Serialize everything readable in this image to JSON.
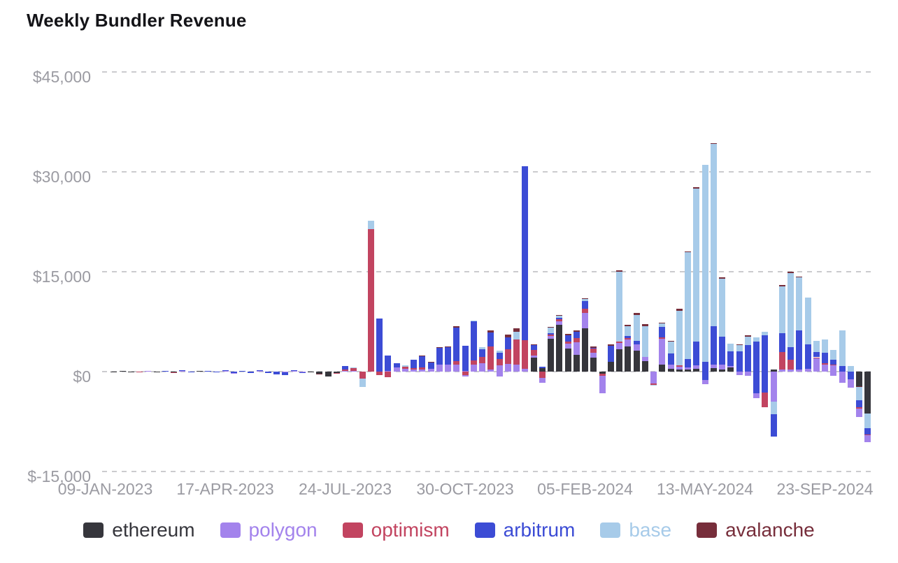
{
  "title": "Weekly Bundler Revenue",
  "chart_data": {
    "type": "bar",
    "stacked": true,
    "title": "Weekly Bundler Revenue",
    "xlabel": "",
    "ylabel": "",
    "ylim": [
      -15000,
      45000
    ],
    "grid": "dashed-horizontal",
    "legend_position": "bottom",
    "x_unit": "week",
    "y_ticks": [
      {
        "value": 45000,
        "label": "$45,000"
      },
      {
        "value": 30000,
        "label": "$30,000"
      },
      {
        "value": 15000,
        "label": "$15,000"
      },
      {
        "value": 0,
        "label": "$0"
      },
      {
        "value": -15000,
        "label": "$-15,000"
      }
    ],
    "x_labels": [
      "09-JAN-2023",
      "17-APR-2023",
      "24-JUL-2023",
      "30-OCT-2023",
      "05-FEB-2024",
      "13-MAY-2024",
      "23-SEP-2024"
    ],
    "legend": [
      {
        "name": "ethereum",
        "color": "#36363c"
      },
      {
        "name": "polygon",
        "color": "#a383ec"
      },
      {
        "name": "optimism",
        "color": "#c24460"
      },
      {
        "name": "arbitrum",
        "color": "#3c4cd5"
      },
      {
        "name": "base",
        "color": "#a7cbe9"
      },
      {
        "name": "avalanche",
        "color": "#772e3b"
      }
    ],
    "bars": [
      [],
      [
        [
          "ethereum",
          -40
        ]
      ],
      [
        [
          "ethereum",
          35
        ]
      ],
      [
        [
          "ethereum",
          -50
        ]
      ],
      [
        [
          "optimism",
          -40
        ]
      ],
      [
        [
          "polygon",
          35
        ]
      ],
      [
        [
          "ethereum",
          -60
        ]
      ],
      [
        [
          "arbitrum",
          55
        ]
      ],
      [
        [
          "ethereum",
          -40
        ],
        [
          "optimism",
          -30
        ]
      ],
      [
        [
          "polygon",
          40
        ],
        [
          "arbitrum",
          45
        ]
      ],
      [
        [
          "arbitrum",
          -65
        ]
      ],
      [
        [
          "ethereum",
          50
        ]
      ],
      [
        [
          "arbitrum",
          120
        ]
      ],
      [
        [
          "arbitrum",
          -140
        ]
      ],
      [
        [
          "polygon",
          60
        ],
        [
          "arbitrum",
          95
        ]
      ],
      [
        [
          "arbitrum",
          -165
        ],
        [
          "polygon",
          -50
        ]
      ],
      [
        [
          "arbitrum",
          130
        ]
      ],
      [
        [
          "arbitrum",
          -190
        ]
      ],
      [
        [
          "polygon",
          70
        ],
        [
          "arbitrum",
          160
        ]
      ],
      [
        [
          "arbitrum",
          -260
        ]
      ],
      [
        [
          "arbitrum",
          -380
        ]
      ],
      [
        [
          "polygon",
          -90
        ],
        [
          "arbitrum",
          -420
        ]
      ],
      [
        [
          "polygon",
          110
        ],
        [
          "arbitrum",
          95
        ]
      ],
      [
        [
          "polygon",
          -70
        ],
        [
          "arbitrum",
          -60
        ]
      ],
      [
        [
          "ethereum",
          -90
        ]
      ],
      [
        [
          "ethereum",
          -310
        ],
        [
          "avalanche",
          -70
        ]
      ],
      [
        [
          "ethereum",
          -700
        ]
      ],
      [
        [
          "ethereum",
          -210
        ],
        [
          "optimism",
          -80
        ]
      ],
      [
        [
          "polygon",
          150
        ],
        [
          "optimism",
          180
        ],
        [
          "arbitrum",
          480
        ]
      ],
      [
        [
          "polygon",
          100
        ],
        [
          "optimism",
          430
        ],
        [
          "base",
          120
        ]
      ],
      [
        [
          "optimism",
          -1000
        ],
        [
          "base",
          -1350
        ]
      ],
      [
        [
          "optimism",
          21400
        ],
        [
          "base",
          1250
        ]
      ],
      [
        [
          "arbitrum",
          8000
        ],
        [
          "optimism",
          -500
        ]
      ],
      [
        [
          "polygon",
          150
        ],
        [
          "arbitrum",
          2300
        ],
        [
          "optimism",
          -800
        ]
      ],
      [
        [
          "polygon",
          600
        ],
        [
          "arbitrum",
          650
        ]
      ],
      [
        [
          "polygon",
          400
        ],
        [
          "optimism",
          300
        ],
        [
          "base",
          200
        ]
      ],
      [
        [
          "polygon",
          300
        ],
        [
          "optimism",
          200
        ],
        [
          "arbitrum",
          1300
        ]
      ],
      [
        [
          "polygon",
          300
        ],
        [
          "optimism",
          300
        ],
        [
          "arbitrum",
          1700
        ],
        [
          "avalanche",
          100
        ]
      ],
      [
        [
          "polygon",
          400
        ],
        [
          "arbitrum",
          1000
        ],
        [
          "avalanche",
          100
        ]
      ],
      [
        [
          "polygon",
          1050
        ],
        [
          "arbitrum",
          2550
        ],
        [
          "avalanche",
          100
        ]
      ],
      [
        [
          "polygon",
          1100
        ],
        [
          "arbitrum",
          2600
        ],
        [
          "avalanche",
          100
        ]
      ],
      [
        [
          "polygon",
          1100
        ],
        [
          "optimism",
          500
        ],
        [
          "arbitrum",
          5000
        ],
        [
          "avalanche",
          200
        ]
      ],
      [
        [
          "polygon",
          150
        ],
        [
          "arbitrum",
          3750
        ],
        [
          "optimism",
          -500
        ],
        [
          "polygon",
          -200
        ]
      ],
      [
        [
          "polygon",
          1000
        ],
        [
          "optimism",
          700
        ],
        [
          "arbitrum",
          5900
        ],
        [
          "base",
          100
        ]
      ],
      [
        [
          "polygon",
          1300
        ],
        [
          "optimism",
          900
        ],
        [
          "arbitrum",
          1200
        ],
        [
          "base",
          300
        ]
      ],
      [
        [
          "polygon",
          300
        ],
        [
          "optimism",
          3500
        ],
        [
          "arbitrum",
          2100
        ],
        [
          "avalanche",
          300
        ]
      ],
      [
        [
          "polygon",
          900
        ],
        [
          "optimism",
          1000
        ],
        [
          "arbitrum",
          900
        ],
        [
          "base",
          300
        ],
        [
          "polygon",
          -700
        ]
      ],
      [
        [
          "polygon",
          1200
        ],
        [
          "optimism",
          2200
        ],
        [
          "arbitrum",
          1700
        ],
        [
          "avalanche",
          500
        ]
      ],
      [
        [
          "polygon",
          1100
        ],
        [
          "optimism",
          3700
        ],
        [
          "base",
          1200
        ],
        [
          "avalanche",
          500
        ]
      ],
      [
        [
          "polygon",
          400
        ],
        [
          "optimism",
          4300
        ],
        [
          "arbitrum",
          26100
        ]
      ],
      [
        [
          "ethereum",
          2100
        ],
        [
          "polygon",
          300
        ],
        [
          "optimism",
          800
        ],
        [
          "arbitrum",
          800
        ],
        [
          "avalanche",
          100
        ]
      ],
      [
        [
          "ethereum",
          550
        ],
        [
          "arbitrum",
          150
        ],
        [
          "optimism",
          -900
        ],
        [
          "polygon",
          -750
        ]
      ],
      [
        [
          "ethereum",
          4900
        ],
        [
          "polygon",
          400
        ],
        [
          "optimism",
          300
        ],
        [
          "arbitrum",
          200
        ],
        [
          "base",
          800
        ],
        [
          "avalanche",
          100
        ]
      ],
      [
        [
          "ethereum",
          7000
        ],
        [
          "polygon",
          600
        ],
        [
          "optimism",
          300
        ],
        [
          "arbitrum",
          200
        ],
        [
          "base",
          300
        ],
        [
          "avalanche",
          100
        ]
      ],
      [
        [
          "ethereum",
          3500
        ],
        [
          "polygon",
          700
        ],
        [
          "optimism",
          350
        ],
        [
          "arbitrum",
          900
        ],
        [
          "avalanche",
          250
        ]
      ],
      [
        [
          "ethereum",
          2500
        ],
        [
          "polygon",
          1900
        ],
        [
          "optimism",
          600
        ],
        [
          "arbitrum",
          950
        ],
        [
          "avalanche",
          250
        ]
      ],
      [
        [
          "ethereum",
          6500
        ],
        [
          "polygon",
          2300
        ],
        [
          "optimism",
          600
        ],
        [
          "arbitrum",
          1200
        ],
        [
          "base",
          300
        ],
        [
          "avalanche",
          100
        ]
      ],
      [
        [
          "ethereum",
          2100
        ],
        [
          "polygon",
          700
        ],
        [
          "optimism",
          700
        ],
        [
          "arbitrum",
          100
        ],
        [
          "avalanche",
          200
        ]
      ],
      [
        [
          "ethereum",
          -350
        ],
        [
          "optimism",
          -250
        ],
        [
          "polygon",
          -2600
        ]
      ],
      [
        [
          "ethereum",
          1500
        ],
        [
          "arbitrum",
          2400
        ],
        [
          "avalanche",
          200
        ]
      ],
      [
        [
          "ethereum",
          3350
        ],
        [
          "polygon",
          900
        ],
        [
          "optimism",
          300
        ],
        [
          "base",
          10400
        ],
        [
          "avalanche",
          300
        ]
      ],
      [
        [
          "ethereum",
          3800
        ],
        [
          "polygon",
          1000
        ],
        [
          "optimism",
          200
        ],
        [
          "arbitrum",
          300
        ],
        [
          "base",
          1500
        ],
        [
          "avalanche",
          200
        ]
      ],
      [
        [
          "ethereum",
          3100
        ],
        [
          "polygon",
          1000
        ],
        [
          "arbitrum",
          500
        ],
        [
          "base",
          3900
        ],
        [
          "avalanche",
          300
        ]
      ],
      [
        [
          "ethereum",
          1600
        ],
        [
          "polygon",
          600
        ],
        [
          "base",
          4600
        ],
        [
          "avalanche",
          300
        ]
      ],
      [
        [
          "polygon",
          -1800
        ],
        [
          "optimism",
          -200
        ],
        [
          "base",
          -150
        ]
      ],
      [
        [
          "ethereum",
          1000
        ],
        [
          "polygon",
          3900
        ],
        [
          "optimism",
          200
        ],
        [
          "arbitrum",
          1600
        ],
        [
          "base",
          500
        ],
        [
          "avalanche",
          100
        ]
      ],
      [
        [
          "ethereum",
          400
        ],
        [
          "polygon",
          700
        ],
        [
          "arbitrum",
          1600
        ],
        [
          "base",
          1850
        ],
        [
          "avalanche",
          100
        ]
      ],
      [
        [
          "ethereum",
          300
        ],
        [
          "polygon",
          400
        ],
        [
          "optimism",
          200
        ],
        [
          "base",
          8200
        ],
        [
          "avalanche",
          300
        ]
      ],
      [
        [
          "ethereum",
          300
        ],
        [
          "polygon",
          300
        ],
        [
          "arbitrum",
          1300
        ],
        [
          "base",
          16000
        ],
        [
          "avalanche",
          100
        ]
      ],
      [
        [
          "ethereum",
          400
        ],
        [
          "polygon",
          500
        ],
        [
          "arbitrum",
          3600
        ],
        [
          "base",
          23000
        ],
        [
          "avalanche",
          200
        ]
      ],
      [
        [
          "arbitrum",
          1500
        ],
        [
          "base",
          29500
        ],
        [
          "arbitrum",
          -1300
        ],
        [
          "polygon",
          -600
        ]
      ],
      [
        [
          "ethereum",
          550
        ],
        [
          "polygon",
          500
        ],
        [
          "arbitrum",
          5800
        ],
        [
          "base",
          27300
        ],
        [
          "avalanche",
          200
        ]
      ],
      [
        [
          "ethereum",
          300
        ],
        [
          "polygon",
          700
        ],
        [
          "arbitrum",
          4200
        ],
        [
          "base",
          8800
        ],
        [
          "avalanche",
          200
        ]
      ],
      [
        [
          "ethereum",
          600
        ],
        [
          "polygon",
          200
        ],
        [
          "arbitrum",
          2200
        ],
        [
          "base",
          1200
        ]
      ],
      [
        [
          "arbitrum",
          3000
        ],
        [
          "base",
          1000
        ],
        [
          "avalanche",
          100
        ],
        [
          "polygon",
          -500
        ]
      ],
      [
        [
          "arbitrum",
          4000
        ],
        [
          "base",
          1200
        ],
        [
          "avalanche",
          300
        ],
        [
          "polygon",
          -600
        ]
      ],
      [
        [
          "arbitrum",
          4500
        ],
        [
          "base",
          600
        ],
        [
          "arbitrum",
          -3300
        ],
        [
          "polygon",
          -700
        ]
      ],
      [
        [
          "arbitrum",
          5500
        ],
        [
          "base",
          500
        ],
        [
          "arbitrum",
          -3100
        ],
        [
          "optimism",
          -2200
        ]
      ],
      [
        [
          "ethereum",
          300
        ],
        [
          "polygon",
          -4500
        ],
        [
          "base",
          -1900
        ],
        [
          "arbitrum",
          -3400
        ]
      ],
      [
        [
          "polygon",
          300
        ],
        [
          "optimism",
          2600
        ],
        [
          "arbitrum",
          2900
        ],
        [
          "base",
          7000
        ],
        [
          "avalanche",
          200
        ]
      ],
      [
        [
          "polygon",
          300
        ],
        [
          "optimism",
          1500
        ],
        [
          "arbitrum",
          1900
        ],
        [
          "base",
          11100
        ],
        [
          "avalanche",
          200
        ]
      ],
      [
        [
          "polygon",
          300
        ],
        [
          "arbitrum",
          5900
        ],
        [
          "base",
          8000
        ],
        [
          "avalanche",
          100
        ]
      ],
      [
        [
          "polygon",
          400
        ],
        [
          "arbitrum",
          3700
        ],
        [
          "base",
          7000
        ]
      ],
      [
        [
          "polygon",
          2000
        ],
        [
          "optimism",
          150
        ],
        [
          "arbitrum",
          750
        ],
        [
          "base",
          1700
        ]
      ],
      [
        [
          "polygon",
          1100
        ],
        [
          "optimism",
          150
        ],
        [
          "arbitrum",
          1600
        ],
        [
          "base",
          1950
        ]
      ],
      [
        [
          "polygon",
          900
        ],
        [
          "optimism",
          150
        ],
        [
          "arbitrum",
          700
        ],
        [
          "base",
          1500
        ],
        [
          "polygon",
          -600
        ]
      ],
      [
        [
          "arbitrum",
          800
        ],
        [
          "base",
          5400
        ],
        [
          "polygon",
          -1700
        ]
      ],
      [
        [
          "base",
          850
        ],
        [
          "arbitrum",
          -1200
        ],
        [
          "polygon",
          -1200
        ]
      ],
      [
        [
          "ethereum",
          -2200
        ],
        [
          "avalanche",
          -150
        ],
        [
          "base",
          -1900
        ],
        [
          "arbitrum",
          -1100
        ],
        [
          "optimism",
          -200
        ],
        [
          "polygon",
          -1300
        ]
      ],
      [
        [
          "ethereum",
          -6300
        ],
        [
          "base",
          -2200
        ],
        [
          "arbitrum",
          -900
        ],
        [
          "optimism",
          -150
        ],
        [
          "polygon",
          -1000
        ]
      ]
    ]
  }
}
